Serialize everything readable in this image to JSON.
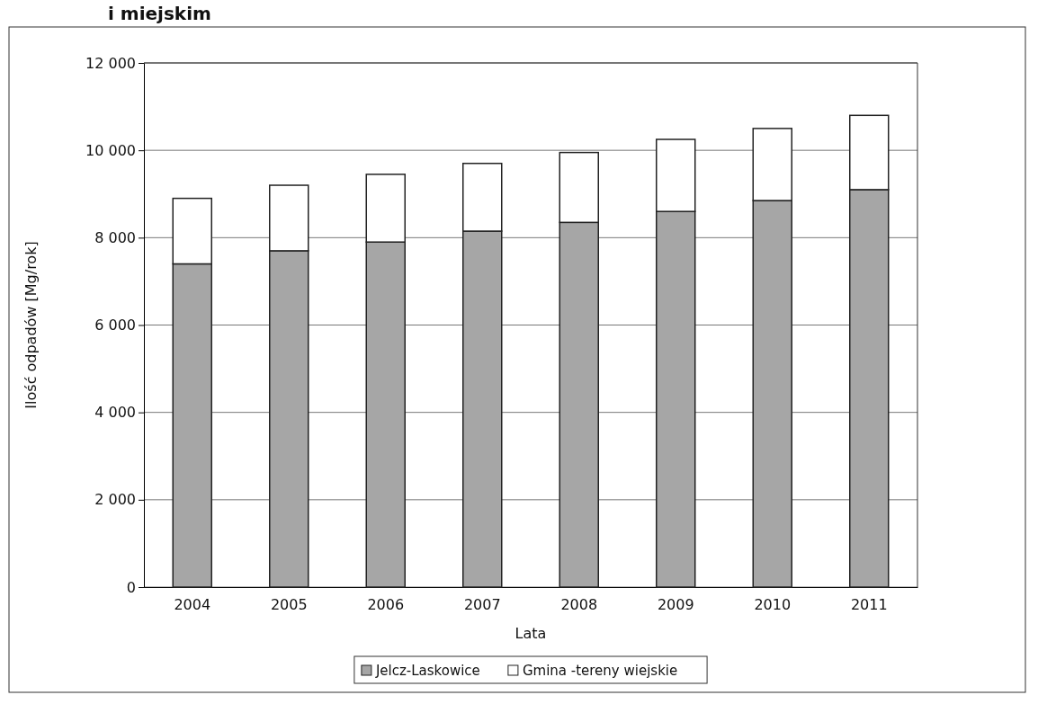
{
  "chart_data": {
    "type": "bar",
    "title": "i miejskim",
    "xlabel": "Lata",
    "ylabel": "Ilość odpadów [Mg/rok]",
    "categories": [
      "2004",
      "2005",
      "2006",
      "2007",
      "2008",
      "2009",
      "2010",
      "2011"
    ],
    "series": [
      {
        "name": "Jelcz-Laskowice",
        "color": "#a6a6a6",
        "values": [
          7400,
          7700,
          7900,
          8150,
          8350,
          8600,
          8850,
          9100
        ]
      },
      {
        "name": "Gmina -tereny wiejskie",
        "color": "#ffffff",
        "values": [
          1500,
          1500,
          1550,
          1550,
          1600,
          1650,
          1650,
          1700
        ]
      }
    ],
    "stacked": true,
    "ylim": [
      0,
      12000
    ],
    "yticks": [
      {
        "value": 0,
        "label": "0"
      },
      {
        "value": 2000,
        "label": "2 000"
      },
      {
        "value": 4000,
        "label": "4 000"
      },
      {
        "value": 6000,
        "label": "6 000"
      },
      {
        "value": 8000,
        "label": "8 000"
      },
      {
        "value": 10000,
        "label": "10 000"
      },
      {
        "value": 12000,
        "label": "12 000"
      }
    ],
    "grid": "y",
    "legend": "bottom"
  }
}
